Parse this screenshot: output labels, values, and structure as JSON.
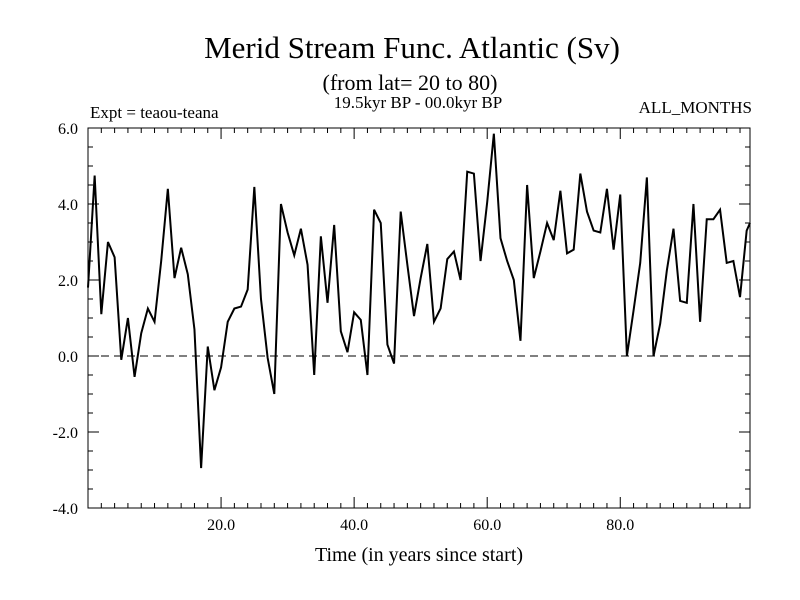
{
  "chart_data": {
    "type": "line",
    "title": "Merid Stream Func. Atlantic (Sv)",
    "subtitle": "(from lat= 20 to 80)",
    "annotation_left": "Expt = teaou-teana",
    "annotation_center": "19.5kyr BP - 00.0kyr BP",
    "annotation_right": "ALL_MONTHS",
    "xlabel": "Time (in years since start)",
    "ylabel": "",
    "xlim": [
      0,
      99.5
    ],
    "ylim": [
      -4.0,
      6.0
    ],
    "x_ticks": [
      20.0,
      40.0,
      60.0,
      80.0
    ],
    "x_tick_labels": [
      "20.0",
      "40.0",
      "60.0",
      "80.0"
    ],
    "y_ticks": [
      -4.0,
      -2.0,
      0.0,
      2.0,
      4.0,
      6.0
    ],
    "y_tick_labels": [
      "-4.0",
      "-2.0",
      "0.0",
      "2.0",
      "4.0",
      "6.0"
    ],
    "reference_line": {
      "y": 0.0,
      "style": "dashed"
    },
    "grid": false,
    "series": [
      {
        "name": "Merid Stream Func. Atlantic",
        "x": [
          0,
          1,
          2,
          3,
          4,
          5,
          6,
          7,
          8,
          9,
          10,
          11,
          12,
          13,
          14,
          15,
          16,
          17,
          18,
          19,
          20,
          21,
          22,
          23,
          24,
          25,
          26,
          27,
          28,
          29,
          30,
          31,
          32,
          33,
          34,
          35,
          36,
          37,
          38,
          39,
          40,
          41,
          42,
          43,
          44,
          45,
          46,
          47,
          48,
          49,
          50,
          51,
          52,
          53,
          54,
          55,
          56,
          57,
          58,
          59,
          60,
          61,
          62,
          63,
          64,
          65,
          66,
          67,
          68,
          69,
          70,
          71,
          72,
          73,
          74,
          75,
          76,
          77,
          78,
          79,
          80,
          81,
          82,
          83,
          84,
          85,
          86,
          87,
          88,
          89,
          90,
          91,
          92,
          93,
          94,
          95,
          96,
          97,
          98,
          99,
          99.5
        ],
        "y": [
          1.8,
          4.75,
          1.1,
          3.0,
          2.6,
          -0.1,
          1.0,
          -0.55,
          0.6,
          1.25,
          0.9,
          2.5,
          4.4,
          2.05,
          2.85,
          2.15,
          0.7,
          -2.95,
          0.25,
          -0.9,
          -0.3,
          0.9,
          1.25,
          1.3,
          1.75,
          4.45,
          1.5,
          -0.05,
          -1.0,
          4.0,
          3.25,
          2.65,
          3.35,
          2.4,
          -0.5,
          3.15,
          1.4,
          3.45,
          0.65,
          0.1,
          1.15,
          0.95,
          -0.5,
          3.85,
          3.5,
          0.3,
          -0.2,
          3.8,
          2.4,
          1.05,
          2.05,
          2.95,
          0.9,
          1.25,
          2.55,
          2.75,
          2.0,
          4.85,
          4.8,
          2.5,
          4.05,
          5.85,
          3.1,
          2.5,
          2.0,
          0.4,
          4.5,
          2.05,
          2.75,
          3.5,
          3.05,
          4.35,
          2.7,
          2.8,
          4.8,
          3.8,
          3.3,
          3.25,
          4.4,
          2.8,
          4.25,
          0.0,
          1.2,
          2.45,
          4.7,
          0.0,
          0.85,
          2.25,
          3.35,
          1.45,
          1.4,
          4.0,
          0.9,
          3.6,
          3.6,
          3.85,
          2.45,
          2.5,
          1.55,
          3.3,
          3.5
        ]
      }
    ]
  }
}
